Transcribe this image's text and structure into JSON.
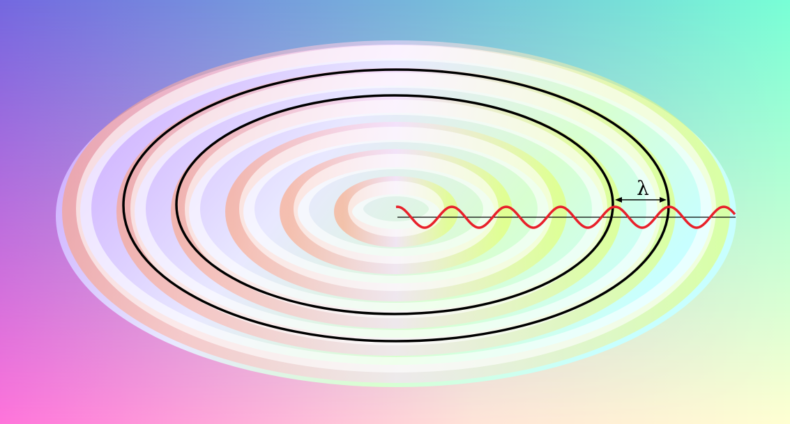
{
  "annotation": {
    "label": "λ"
  }
}
